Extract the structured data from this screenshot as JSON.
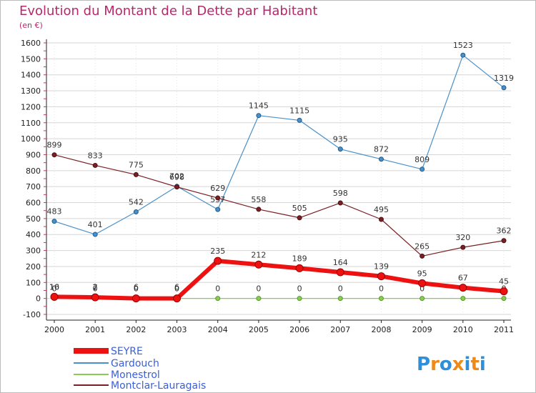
{
  "chart_data": {
    "type": "line",
    "title": "Evolution du Montant de la Dette par Habitant",
    "subtitle": "(en €)",
    "categories": [
      "2000",
      "2001",
      "2002",
      "2003",
      "2004",
      "2005",
      "2006",
      "2007",
      "2008",
      "2009",
      "2010",
      "2011"
    ],
    "ylim": [
      -100,
      1600
    ],
    "yticks": [
      -100,
      0,
      100,
      200,
      300,
      400,
      500,
      600,
      700,
      800,
      900,
      1000,
      1100,
      1200,
      1300,
      1400,
      1500,
      1600
    ],
    "grid": true,
    "legend_position": "bottom-left",
    "series": [
      {
        "name": "Gardouch",
        "color": "#4a90c8",
        "values": [
          483,
          401,
          542,
          702,
          557,
          1145,
          1115,
          935,
          872,
          809,
          1523,
          1319
        ],
        "labels": [
          "483",
          "401",
          "542",
          "702",
          "557",
          "1145",
          "1115",
          "935",
          "872",
          "809",
          "1523",
          "1319"
        ]
      },
      {
        "name": "Montclar-Lauragais",
        "color": "#7a1f24",
        "values": [
          899,
          833,
          775,
          698,
          629,
          558,
          505,
          598,
          495,
          265,
          320,
          362
        ],
        "labels": [
          "899",
          "833",
          "775",
          "698",
          "629",
          "558",
          "505",
          "598",
          "495",
          "265",
          "320",
          "362"
        ]
      },
      {
        "name": "Monestrol",
        "color": "#88cc55",
        "values": [
          0,
          0,
          0,
          0,
          0,
          0,
          0,
          0,
          0,
          0,
          0,
          0
        ],
        "labels": [
          "0",
          "0",
          "0",
          "0",
          "0",
          "0",
          "0",
          "0",
          "0",
          "0",
          "0",
          "0"
        ]
      },
      {
        "name": "SEYRE",
        "color": "#ee1111",
        "values": [
          10,
          7,
          0,
          0,
          235,
          212,
          189,
          164,
          139,
          95,
          67,
          45
        ],
        "labels": [
          "10",
          "7",
          "0",
          "0",
          "235",
          "212",
          "189",
          "164",
          "139",
          "95",
          "67",
          "45"
        ]
      }
    ],
    "overlap_labels": [
      "16",
      "2",
      "6",
      "6"
    ],
    "legend_order": [
      "SEYRE",
      "Gardouch",
      "Monestrol",
      "Montclar-Lauragais"
    ]
  },
  "logo_text": "Proxiti",
  "logo_colors": [
    "#2f8fd8",
    "#ee8a1a",
    "#2f8fd8",
    "#ee8a1a",
    "#2f8fd8",
    "#ee8a1a",
    "#2f8fd8"
  ]
}
